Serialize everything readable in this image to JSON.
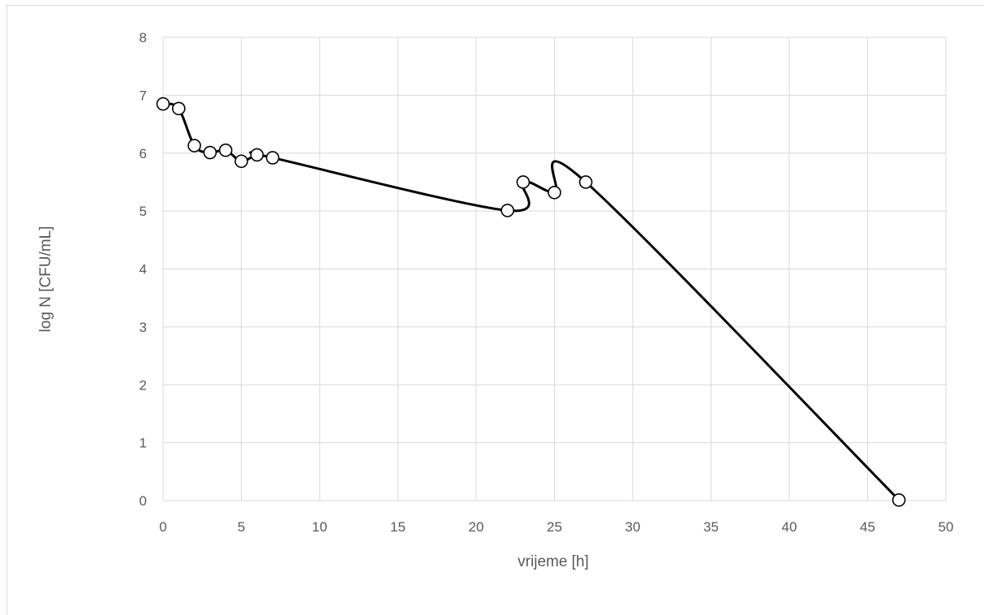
{
  "chart_data": {
    "type": "scatter",
    "title": "",
    "xlabel": "vrijeme [h]",
    "ylabel": "log N [CFU/mL]",
    "xlim": [
      0,
      50
    ],
    "ylim": [
      0,
      8
    ],
    "xticks": [
      0,
      5,
      10,
      15,
      20,
      25,
      30,
      35,
      40,
      45,
      50
    ],
    "yticks": [
      0,
      1,
      2,
      3,
      4,
      5,
      6,
      7,
      8
    ],
    "grid": true,
    "legend": "none",
    "line_style": "smoothed",
    "marker": "open-circle",
    "colors": {
      "line": "#000000",
      "marker_fill": "#ffffff",
      "grid": "#d9d9d9",
      "text": "#595959"
    },
    "series": [
      {
        "x": [
          0,
          1,
          2,
          3,
          4,
          5,
          6,
          7,
          22,
          23,
          25,
          27,
          47
        ],
        "y": [
          6.85,
          6.77,
          6.13,
          6.01,
          6.05,
          5.86,
          5.97,
          5.92,
          5.01,
          5.5,
          5.32,
          5.5,
          0.01
        ]
      }
    ]
  }
}
